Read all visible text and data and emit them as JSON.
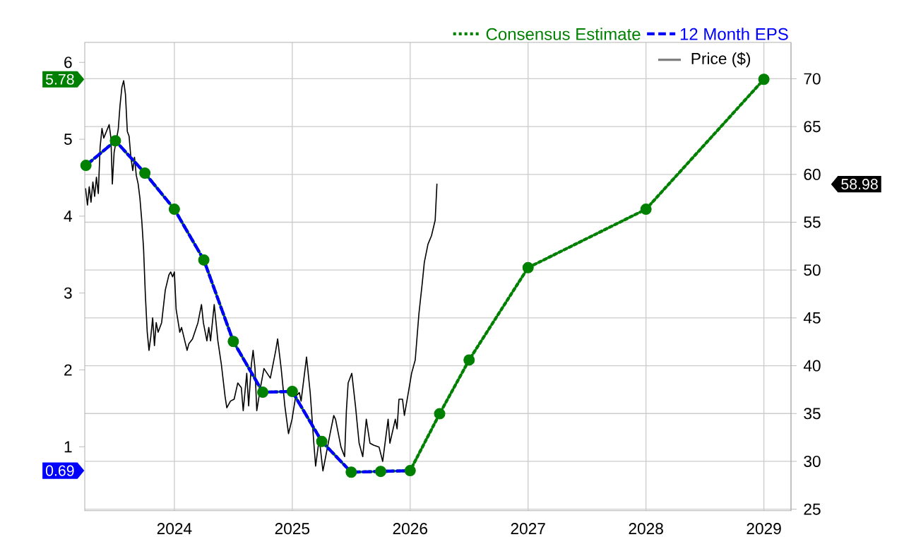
{
  "chart_data": {
    "type": "line",
    "xlim": [
      2023.24,
      2029.23
    ],
    "xticks": [
      2024,
      2025,
      2026,
      2027,
      2028,
      2029
    ],
    "ylim": [
      0.17,
      6.26
    ],
    "yticks": [
      1,
      2,
      3,
      4,
      5,
      6
    ],
    "y2lim": [
      24.85,
      73.8
    ],
    "y2ticks": [
      25,
      30,
      35,
      40,
      45,
      50,
      55,
      60,
      65,
      70
    ],
    "grid": true,
    "legend": "top right",
    "annotations": [
      "5.78",
      "0.69",
      "58.98"
    ],
    "series": [
      {
        "name": "Consensus Estimate",
        "color": "#008000",
        "line_style": "dotted",
        "marker": "circle",
        "x": [
          2023.25,
          2023.5,
          2023.75,
          2024,
          2024.25,
          2024.5,
          2024.75,
          2025,
          2025.25,
          2025.5,
          2025.75,
          2026,
          2026.25,
          2026.5,
          2027,
          2028,
          2029
        ],
        "values": [
          4.66,
          4.98,
          4.56,
          4.09,
          3.43,
          2.37,
          1.71,
          1.72,
          1.07,
          0.67,
          0.68,
          0.69,
          1.43,
          2.13,
          3.33,
          4.09,
          5.78
        ]
      },
      {
        "name": "12 Month EPS",
        "color": "#0000ff",
        "line_style": "dashed",
        "marker": "none",
        "x": [
          2023.25,
          2023.5,
          2023.75,
          2024,
          2024.25,
          2024.5,
          2024.75,
          2025,
          2025.25,
          2025.5,
          2025.75,
          2026
        ],
        "values": [
          4.66,
          4.98,
          4.56,
          4.09,
          3.43,
          2.37,
          1.71,
          1.72,
          1.07,
          0.67,
          0.68,
          0.69
        ]
      },
      {
        "name": "Price ($)",
        "color": "#000000",
        "line_style": "solid",
        "marker": "none",
        "axis": "y2",
        "x": [
          2023.247,
          2023.263,
          2023.278,
          2023.293,
          2023.309,
          2023.324,
          2023.339,
          2023.355,
          2023.37,
          2023.386,
          2023.401,
          2023.447,
          2023.462,
          2023.474,
          2023.489,
          2023.524,
          2023.539,
          2023.555,
          2023.57,
          2023.585,
          2023.601,
          2023.616,
          2023.631,
          2023.647,
          2023.662,
          2023.677,
          2023.693,
          2023.708,
          2023.724,
          2023.739,
          2023.754,
          2023.77,
          2023.785,
          2023.8,
          2023.816,
          2023.831,
          2023.846,
          2023.862,
          2023.892,
          2023.923,
          2023.954,
          2023.969,
          2023.985,
          2024.0,
          2024.015,
          2024.046,
          2024.061,
          2024.108,
          2024.123,
          2024.154,
          2024.2,
          2024.23,
          2024.246,
          2024.276,
          2024.292,
          2024.307,
          2024.338,
          2024.369,
          2024.399,
          2024.43,
          2024.445,
          2024.476,
          2024.507,
          2024.538,
          2024.568,
          2024.584,
          2024.614,
          2024.63,
          2024.653,
          2024.668,
          2024.684,
          2024.699,
          2024.73,
          2024.76,
          2024.814,
          2024.86,
          2024.876,
          2024.906,
          2024.937,
          2024.968,
          2024.998,
          2025.029,
          2025.06,
          2025.075,
          2025.121,
          2025.152,
          2025.183,
          2025.198,
          2025.229,
          2025.26,
          2025.321,
          2025.352,
          2025.367,
          2025.413,
          2025.444,
          2025.459,
          2025.474,
          2025.505,
          2025.536,
          2025.567,
          2025.598,
          2025.628,
          2025.659,
          2025.69,
          2025.736,
          2025.767,
          2025.813,
          2025.828,
          2025.874,
          2025.889,
          2025.905,
          2025.935,
          2025.951,
          2025.982,
          2026.012,
          2026.043,
          2026.074,
          2026.104,
          2026.12,
          2026.151,
          2026.181,
          2026.212,
          2026.227
        ],
        "values": [
          58.5,
          56.8,
          58.7,
          57.1,
          59.2,
          57.7,
          59.7,
          58.0,
          62.8,
          64.8,
          63.8,
          65.2,
          63.8,
          59.0,
          62.3,
          64.7,
          67.2,
          69.1,
          69.8,
          68.4,
          64.5,
          64.0,
          61.8,
          60.4,
          61.8,
          59.9,
          59.0,
          57.5,
          55.1,
          52.2,
          47.4,
          43.5,
          41.6,
          43.0,
          45.0,
          42.1,
          44.5,
          43.5,
          44.5,
          47.9,
          49.5,
          49.8,
          49.3,
          49.8,
          45.9,
          43.5,
          44.0,
          41.6,
          42.3,
          42.8,
          44.5,
          46.4,
          44.5,
          42.6,
          44.0,
          42.6,
          46.4,
          42.6,
          40.1,
          36.8,
          35.6,
          36.3,
          36.5,
          38.2,
          37.7,
          35.3,
          39.2,
          35.8,
          40.1,
          41.6,
          39.7,
          35.3,
          37.7,
          39.7,
          38.7,
          41.6,
          42.8,
          39.7,
          35.8,
          32.9,
          34.4,
          36.8,
          37.2,
          36.3,
          40.9,
          37.2,
          31.9,
          29.5,
          32.4,
          29.0,
          32.9,
          34.8,
          34.4,
          31.5,
          30.5,
          35.3,
          38.2,
          39.2,
          35.8,
          31.9,
          30.5,
          34.4,
          31.9,
          31.7,
          31.5,
          30.0,
          34.4,
          31.9,
          34.4,
          33.4,
          36.5,
          36.5,
          34.8,
          37.0,
          39.2,
          40.6,
          45.4,
          48.8,
          50.8,
          52.7,
          53.6,
          55.2,
          58.98
        ]
      }
    ]
  }
}
